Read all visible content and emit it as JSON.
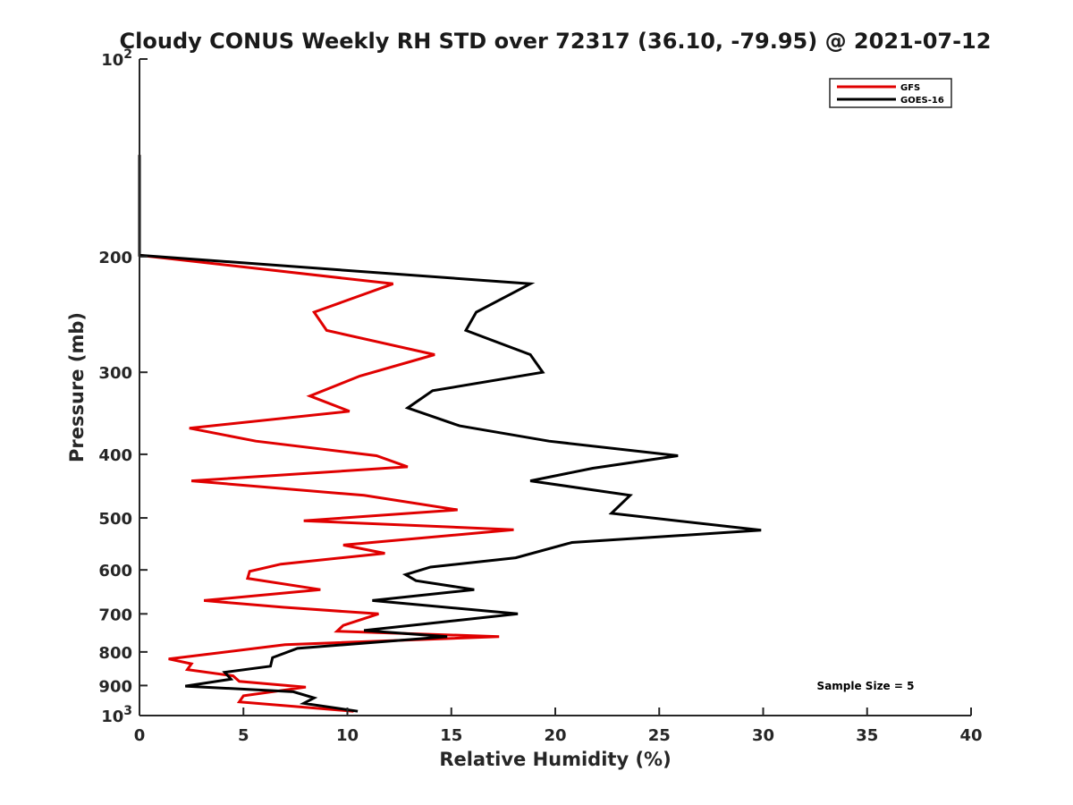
{
  "chart_data": {
    "type": "line",
    "title": "Cloudy CONUS Weekly RH STD over 72317 (36.10, -79.95) @ 2021-07-12",
    "xlabel": "Relative Humidity (%)",
    "ylabel": "Pressure (mb)",
    "xlim": [
      0,
      40
    ],
    "ylim": [
      100,
      1000
    ],
    "y_scale": "log",
    "y_reversed": true,
    "x_ticks": [
      "0",
      "5",
      "10",
      "15",
      "20",
      "25",
      "30",
      "35",
      "40"
    ],
    "y_ticks": [
      {
        "value": 100,
        "base": "10",
        "exp": "2"
      },
      {
        "value": 200,
        "label": "200"
      },
      {
        "value": 300,
        "label": "300"
      },
      {
        "value": 400,
        "label": "400"
      },
      {
        "value": 500,
        "label": "500"
      },
      {
        "value": 600,
        "label": "600"
      },
      {
        "value": 700,
        "label": "700"
      },
      {
        "value": 800,
        "label": "800"
      },
      {
        "value": 900,
        "label": "900"
      },
      {
        "value": 1000,
        "base": "10",
        "exp": "3"
      }
    ],
    "legend": {
      "position": "top-right",
      "entries": [
        "GFS",
        "GOES-16"
      ]
    },
    "annotation": "Sample Size = 5",
    "series": [
      {
        "name": "GFS",
        "color": "#e00000",
        "points": [
          [
            0,
            140
          ],
          [
            0,
            199
          ],
          [
            12.2,
            220
          ],
          [
            8.4,
            243
          ],
          [
            9.0,
            259
          ],
          [
            14.2,
            282
          ],
          [
            10.6,
            304
          ],
          [
            8.2,
            326
          ],
          [
            10.1,
            344
          ],
          [
            2.4,
            365
          ],
          [
            5.6,
            382
          ],
          [
            11.4,
            402
          ],
          [
            12.9,
            418
          ],
          [
            2.5,
            439
          ],
          [
            10.8,
            462
          ],
          [
            15.3,
            486
          ],
          [
            7.9,
            505
          ],
          [
            18.0,
            521
          ],
          [
            9.8,
            550
          ],
          [
            11.8,
            566
          ],
          [
            6.8,
            588
          ],
          [
            5.3,
            603
          ],
          [
            5.2,
            618
          ],
          [
            8.7,
            643
          ],
          [
            3.1,
            668
          ],
          [
            6.9,
            684
          ],
          [
            11.5,
            700
          ],
          [
            9.8,
            729
          ],
          [
            9.5,
            744
          ],
          [
            17.3,
            758
          ],
          [
            7.0,
            780
          ],
          [
            1.4,
            820
          ],
          [
            2.5,
            834
          ],
          [
            2.3,
            851
          ],
          [
            4.5,
            870
          ],
          [
            4.8,
            887
          ],
          [
            8.0,
            905
          ],
          [
            5.0,
            933
          ],
          [
            4.8,
            953
          ],
          [
            10.3,
            985
          ]
        ]
      },
      {
        "name": "GOES-16",
        "color": "#000000",
        "points": [
          [
            0,
            140
          ],
          [
            0,
            199
          ],
          [
            18.8,
            220
          ],
          [
            16.2,
            243
          ],
          [
            15.7,
            259
          ],
          [
            18.8,
            282
          ],
          [
            19.4,
            300
          ],
          [
            14.1,
            320
          ],
          [
            12.9,
            340
          ],
          [
            15.4,
            362
          ],
          [
            19.7,
            382
          ],
          [
            25.9,
            402
          ],
          [
            21.8,
            420
          ],
          [
            18.8,
            439
          ],
          [
            23.6,
            462
          ],
          [
            22.7,
            492
          ],
          [
            29.9,
            522
          ],
          [
            20.8,
            545
          ],
          [
            18.1,
            575
          ],
          [
            14.0,
            594
          ],
          [
            12.8,
            610
          ],
          [
            13.3,
            623
          ],
          [
            16.1,
            643
          ],
          [
            11.2,
            668
          ],
          [
            18.2,
            700
          ],
          [
            10.8,
            742
          ],
          [
            14.8,
            758
          ],
          [
            7.6,
            790
          ],
          [
            6.4,
            816
          ],
          [
            6.3,
            841
          ],
          [
            4.1,
            859
          ],
          [
            4.4,
            880
          ],
          [
            2.2,
            902
          ],
          [
            7.4,
            920
          ],
          [
            8.4,
            940
          ],
          [
            7.9,
            958
          ],
          [
            10.5,
            985
          ]
        ]
      }
    ]
  }
}
